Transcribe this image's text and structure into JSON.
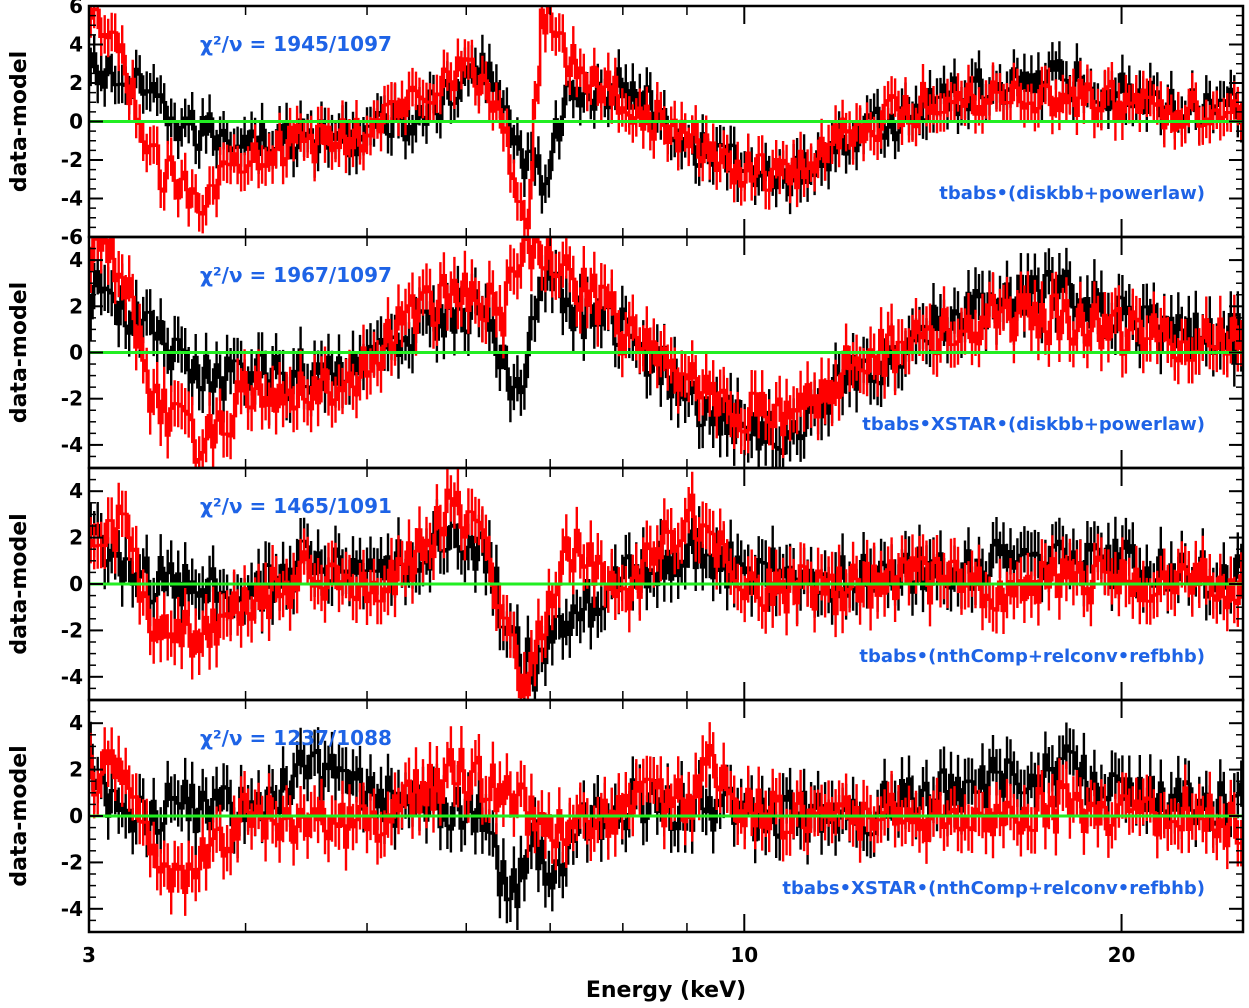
{
  "chart_data": {
    "type": "line",
    "xlabel": "Energy (keV)",
    "ylabel": "data-model",
    "xscale": "log",
    "xlim": [
      3,
      25
    ],
    "x_tick_labels": [
      "3",
      "10",
      "20"
    ],
    "colors": {
      "series_black": "#000000",
      "series_red": "#ff0000",
      "zero_line": "#22ee22",
      "annotation": "#1e63e6"
    },
    "panels": [
      {
        "chi2_label": "χ²/ν  =  1945/1097",
        "model_label": "tbabs•(diskbb+powerlaw)",
        "ylim": [
          -6,
          6
        ],
        "y_ticks": [
          -6,
          -4,
          -2,
          0,
          2,
          4,
          6
        ],
        "series": [
          {
            "color": "#000000",
            "x": [
              3.1,
              3.3,
              3.6,
              4.0,
              4.5,
              5.0,
              5.5,
              5.9,
              6.2,
              6.4,
              6.6,
              6.9,
              7.2,
              8.0,
              9.0,
              10.0,
              11.0,
              12.0,
              14.0,
              16.0,
              18.0,
              20.0,
              22.0,
              24.0
            ],
            "y": [
              2.5,
              1.5,
              -0.5,
              -0.8,
              -1.0,
              -0.6,
              0.3,
              1.5,
              2.8,
              1.8,
              -1.5,
              -3.0,
              1.0,
              1.8,
              -1.0,
              -2.5,
              -2.8,
              -1.0,
              0.8,
              2.0,
              2.2,
              1.5,
              0.8,
              1.0
            ]
          },
          {
            "color": "#ff0000",
            "x": [
              3.0,
              3.1,
              3.2,
              3.35,
              3.5,
              3.7,
              4.0,
              4.5,
              5.0,
              5.5,
              5.9,
              6.2,
              6.4,
              6.7,
              6.9,
              7.0,
              7.3,
              8.0,
              9.0,
              10.0,
              11.0,
              12.0,
              14.0,
              16.0,
              18.0,
              20.0,
              22.0,
              24.0
            ],
            "y": [
              5.0,
              4.5,
              3.0,
              -2.0,
              -3.0,
              -3.8,
              -1.5,
              -1.2,
              -0.5,
              1.5,
              2.8,
              2.0,
              0.0,
              -5.8,
              5.5,
              5.8,
              3.0,
              1.0,
              -1.0,
              -2.5,
              -2.6,
              -0.5,
              1.0,
              1.5,
              1.2,
              1.0,
              0.5,
              0.8
            ]
          }
        ]
      },
      {
        "chi2_label": "χ²/ν  =  1967/1097",
        "model_label": "tbabs•XSTAR•(diskbb+powerlaw)",
        "ylim": [
          -5,
          5
        ],
        "y_ticks": [
          -4,
          -2,
          0,
          2,
          4
        ],
        "series": [
          {
            "color": "#000000",
            "x": [
              3.1,
              3.3,
              3.6,
              4.0,
              4.5,
              5.0,
              5.5,
              5.9,
              6.2,
              6.4,
              6.6,
              6.9,
              7.2,
              8.0,
              9.0,
              10.0,
              11.0,
              12.0,
              14.0,
              16.0,
              18.0,
              20.0,
              22.0,
              24.0
            ],
            "y": [
              2.5,
              1.3,
              -0.8,
              -1.2,
              -0.9,
              -0.3,
              0.8,
              2.0,
              1.8,
              0.0,
              -2.0,
              3.5,
              2.0,
              1.0,
              -1.8,
              -3.2,
              -3.4,
              -1.2,
              0.8,
              2.2,
              2.5,
              1.5,
              0.8,
              0.6
            ]
          },
          {
            "color": "#ff0000",
            "x": [
              3.0,
              3.1,
              3.2,
              3.35,
              3.5,
              3.7,
              4.0,
              4.5,
              5.0,
              5.5,
              5.9,
              6.2,
              6.4,
              6.7,
              6.9,
              7.2,
              8.0,
              9.0,
              10.0,
              11.0,
              12.0,
              14.0,
              16.0,
              18.0,
              20.0,
              22.0,
              24.0
            ],
            "y": [
              4.5,
              4.7,
              3.5,
              -1.5,
              -3.0,
              -4.0,
              -1.8,
              -1.5,
              -0.8,
              2.0,
              2.6,
              2.2,
              1.5,
              4.7,
              4.6,
              3.5,
              1.0,
              -1.0,
              -2.8,
              -2.9,
              -0.8,
              0.8,
              1.6,
              1.4,
              1.0,
              0.6,
              0.5
            ]
          }
        ]
      },
      {
        "chi2_label": "χ²/ν  =  1465/1091",
        "model_label": "tbabs•(nthComp+relconv•refbhb)",
        "ylim": [
          -5,
          5
        ],
        "y_ticks": [
          -4,
          -2,
          0,
          2,
          4
        ],
        "series": [
          {
            "color": "#000000",
            "x": [
              3.0,
              3.2,
              3.5,
              4.0,
              4.5,
              5.0,
              5.5,
              5.9,
              6.2,
              6.5,
              6.8,
              7.2,
              8.0,
              9.0,
              10.0,
              12.0,
              14.0,
              16.0,
              18.0,
              20.0,
              22.0,
              24.0
            ],
            "y": [
              2.8,
              0.2,
              0.0,
              -0.5,
              1.0,
              0.3,
              1.2,
              2.0,
              1.5,
              -2.5,
              -3.8,
              -1.5,
              0.2,
              1.5,
              0.5,
              0.2,
              0.5,
              1.0,
              1.2,
              0.8,
              0.3,
              0.5
            ]
          },
          {
            "color": "#ff0000",
            "x": [
              3.0,
              3.1,
              3.2,
              3.35,
              3.5,
              3.7,
              4.0,
              4.5,
              5.0,
              5.5,
              5.9,
              6.2,
              6.4,
              6.7,
              6.9,
              7.2,
              8.0,
              9.0,
              10.0,
              12.0,
              14.0,
              16.0,
              18.0,
              20.0,
              22.0,
              24.0
            ],
            "y": [
              2.0,
              1.8,
              2.5,
              -1.5,
              -2.0,
              -2.5,
              -1.0,
              0.5,
              -0.5,
              1.5,
              3.5,
              2.0,
              -1.5,
              -4.8,
              -2.0,
              1.8,
              -0.5,
              3.2,
              0.0,
              -0.3,
              0.2,
              -0.2,
              0.5,
              0.0,
              0.3,
              -0.2
            ]
          }
        ]
      },
      {
        "chi2_label": "χ²/ν  =  1237/1088",
        "model_label": "tbabs•XSTAR•(nthComp+relconv•refbhb)",
        "ylim": [
          -5,
          5
        ],
        "y_ticks": [
          -4,
          -2,
          0,
          2,
          4
        ],
        "series": [
          {
            "color": "#000000",
            "x": [
              3.0,
              3.2,
              3.5,
              4.0,
              4.5,
              5.0,
              5.5,
              5.9,
              6.2,
              6.5,
              6.8,
              7.0,
              7.3,
              8.0,
              9.0,
              10.0,
              12.0,
              14.0,
              16.0,
              18.0,
              20.0,
              22.0,
              24.0
            ],
            "y": [
              2.5,
              -0.3,
              0.5,
              0.2,
              2.0,
              0.8,
              0.5,
              0.5,
              -0.2,
              -3.8,
              -1.0,
              -3.5,
              -0.5,
              0.5,
              0.5,
              0.0,
              0.0,
              0.8,
              1.5,
              2.0,
              1.0,
              0.5,
              0.5
            ]
          },
          {
            "color": "#ff0000",
            "x": [
              3.0,
              3.1,
              3.2,
              3.35,
              3.5,
              3.7,
              4.0,
              4.5,
              5.0,
              5.5,
              5.9,
              6.2,
              6.5,
              6.8,
              7.2,
              8.0,
              9.0,
              9.4,
              10.0,
              12.0,
              14.0,
              16.0,
              18.0,
              20.0,
              22.0,
              24.0
            ],
            "y": [
              1.8,
              2.0,
              2.0,
              -1.5,
              -2.5,
              -2.0,
              0.3,
              -0.5,
              -0.3,
              1.0,
              2.0,
              1.5,
              1.0,
              0.0,
              -1.0,
              0.5,
              0.5,
              2.5,
              0.2,
              -0.2,
              0.0,
              -0.3,
              0.5,
              0.0,
              0.3,
              -0.2
            ]
          }
        ]
      }
    ]
  }
}
